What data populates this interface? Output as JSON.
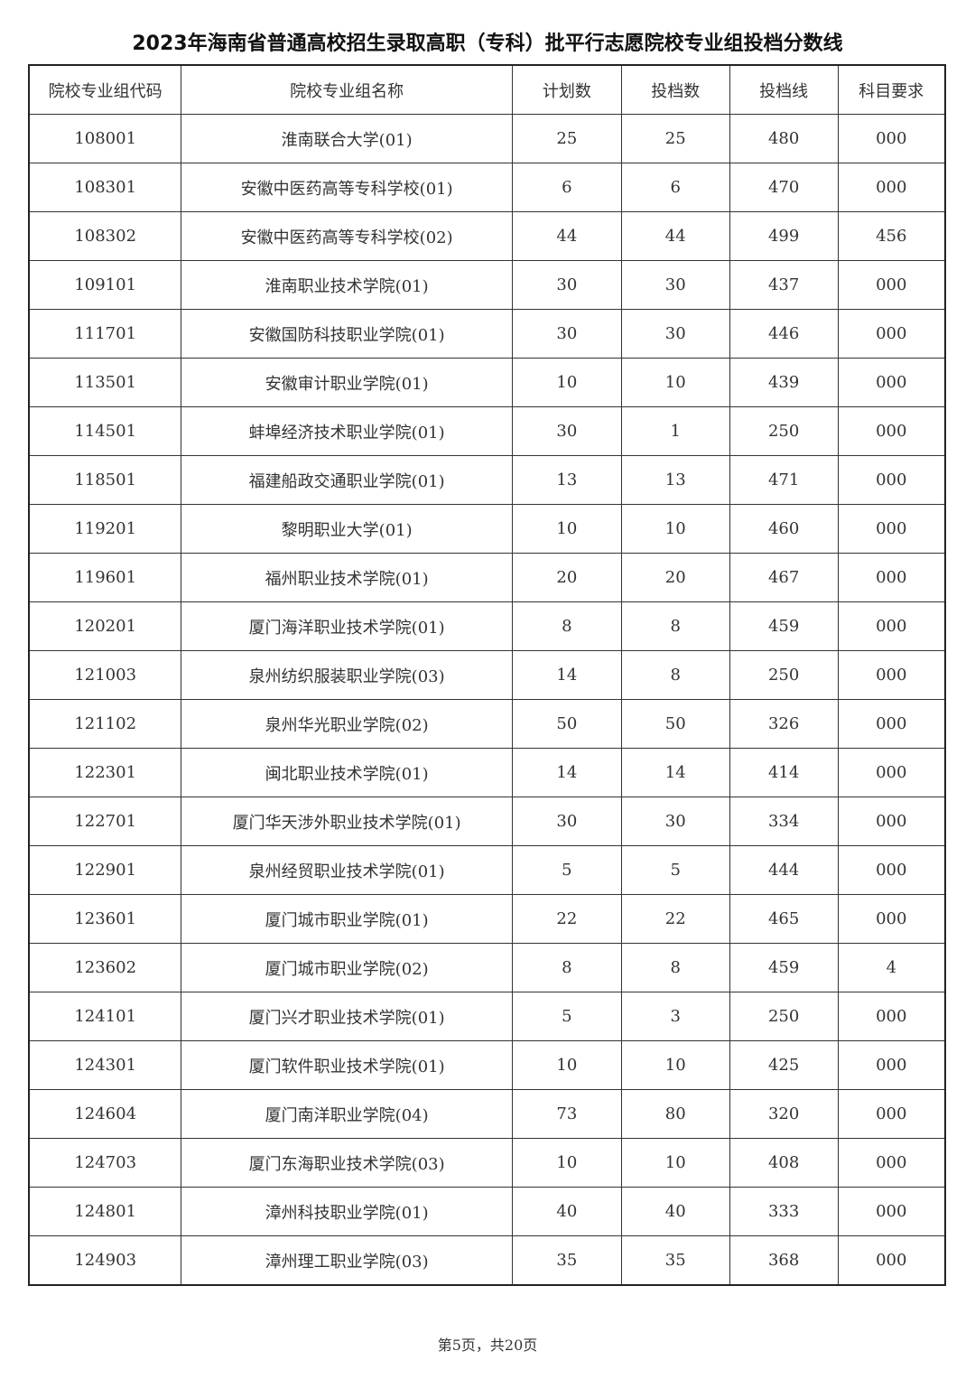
{
  "title": "2023年海南省普通高校招生录取高职（专科）批平行志愿院校专业组投档分数线",
  "columns": [
    "院校专业组代码",
    "院校专业组名称",
    "计划数",
    "投档数",
    "投档线",
    "科目要求"
  ],
  "rows": [
    [
      "108001",
      "淮南联合大学(01)",
      "25",
      "25",
      "480",
      "000"
    ],
    [
      "108301",
      "安徽中医药高等专科学校(01)",
      "6",
      "6",
      "470",
      "000"
    ],
    [
      "108302",
      "安徽中医药高等专科学校(02)",
      "44",
      "44",
      "499",
      "456"
    ],
    [
      "109101",
      "淮南职业技术学院(01)",
      "30",
      "30",
      "437",
      "000"
    ],
    [
      "111701",
      "安徽国防科技职业学院(01)",
      "30",
      "30",
      "446",
      "000"
    ],
    [
      "113501",
      "安徽审计职业学院(01)",
      "10",
      "10",
      "439",
      "000"
    ],
    [
      "114501",
      "蚌埠经济技术职业学院(01)",
      "30",
      "1",
      "250",
      "000"
    ],
    [
      "118501",
      "福建船政交通职业学院(01)",
      "13",
      "13",
      "471",
      "000"
    ],
    [
      "119201",
      "黎明职业大学(01)",
      "10",
      "10",
      "460",
      "000"
    ],
    [
      "119601",
      "福州职业技术学院(01)",
      "20",
      "20",
      "467",
      "000"
    ],
    [
      "120201",
      "厦门海洋职业技术学院(01)",
      "8",
      "8",
      "459",
      "000"
    ],
    [
      "121003",
      "泉州纺织服装职业学院(03)",
      "14",
      "8",
      "250",
      "000"
    ],
    [
      "121102",
      "泉州华光职业学院(02)",
      "50",
      "50",
      "326",
      "000"
    ],
    [
      "122301",
      "闽北职业技术学院(01)",
      "14",
      "14",
      "414",
      "000"
    ],
    [
      "122701",
      "厦门华天涉外职业技术学院(01)",
      "30",
      "30",
      "334",
      "000"
    ],
    [
      "122901",
      "泉州经贸职业技术学院(01)",
      "5",
      "5",
      "444",
      "000"
    ],
    [
      "123601",
      "厦门城市职业学院(01)",
      "22",
      "22",
      "465",
      "000"
    ],
    [
      "123602",
      "厦门城市职业学院(02)",
      "8",
      "8",
      "459",
      "4"
    ],
    [
      "124101",
      "厦门兴才职业技术学院(01)",
      "5",
      "3",
      "250",
      "000"
    ],
    [
      "124301",
      "厦门软件职业技术学院(01)",
      "10",
      "10",
      "425",
      "000"
    ],
    [
      "124604",
      "厦门南洋职业学院(04)",
      "73",
      "80",
      "320",
      "000"
    ],
    [
      "124703",
      "厦门东海职业技术学院(03)",
      "10",
      "10",
      "408",
      "000"
    ],
    [
      "124801",
      "漳州科技职业学院(01)",
      "40",
      "40",
      "333",
      "000"
    ],
    [
      "124903",
      "漳州理工职业学院(03)",
      "35",
      "35",
      "368",
      "000"
    ]
  ],
  "footer": "第5页，共20页"
}
